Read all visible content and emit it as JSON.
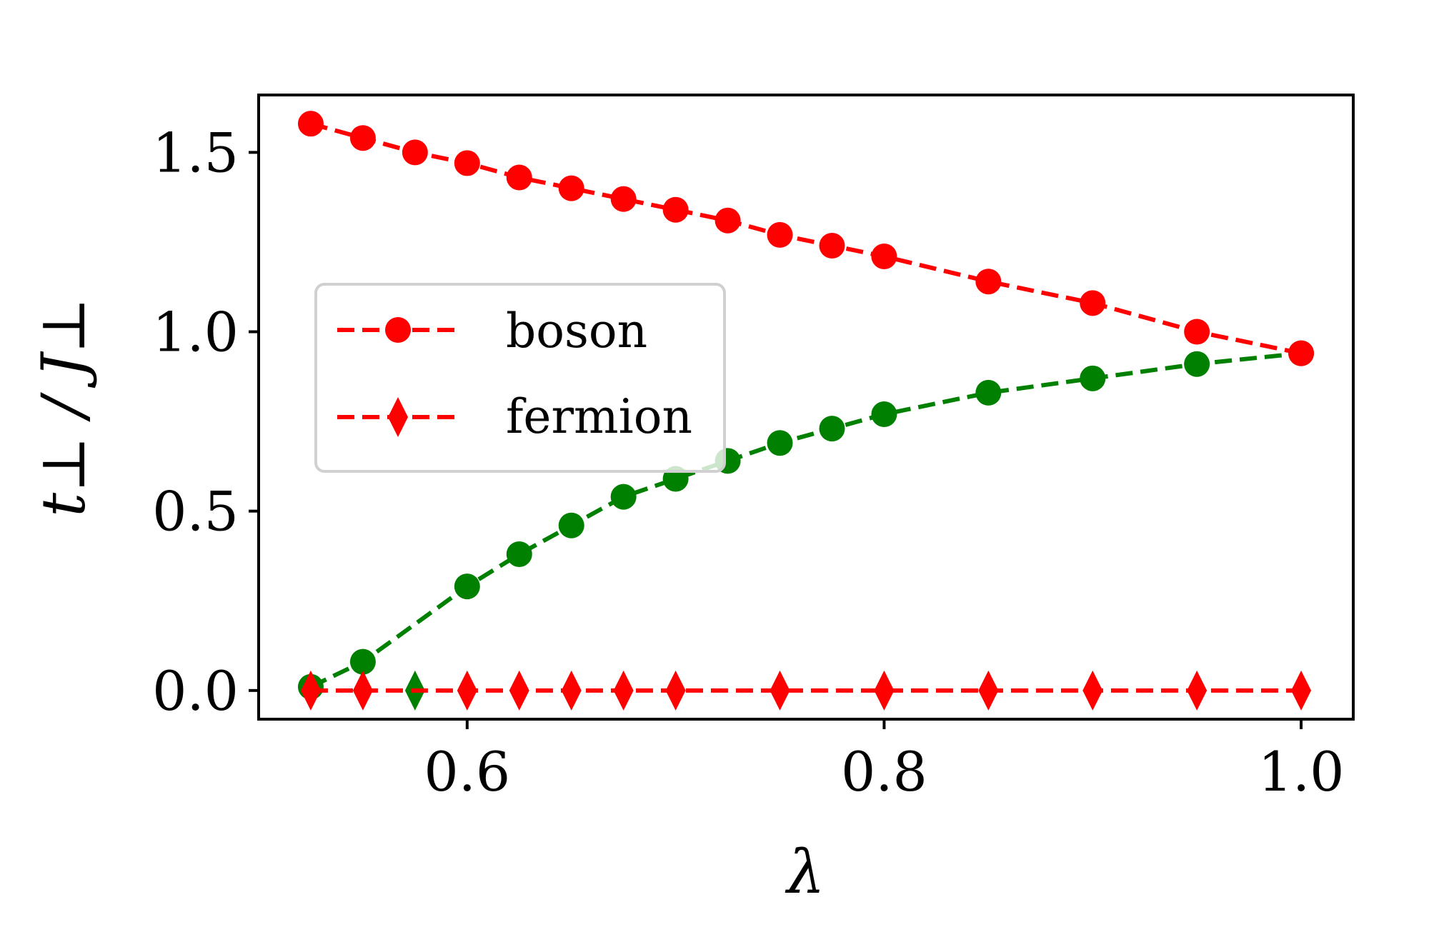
{
  "chart_data": {
    "type": "line",
    "xlabel": "λ",
    "ylabel": "t⊥ / J⊥",
    "xlim": [
      0.5,
      1.025
    ],
    "ylim": [
      -0.08,
      1.66
    ],
    "xticks": [
      0.6,
      0.8,
      1.0
    ],
    "xtick_labels": [
      "0.6",
      "0.8",
      "1.0"
    ],
    "yticks": [
      0.0,
      0.5,
      1.0,
      1.5
    ],
    "ytick_labels": [
      "0.0",
      "0.5",
      "1.0",
      "1.5"
    ],
    "grid": false,
    "legend_position": "center-left",
    "series": [
      {
        "name": "boson",
        "color": "#ff0000",
        "marker": "circle",
        "linestyle": "dashed",
        "x": [
          0.525,
          0.55,
          0.575,
          0.6,
          0.625,
          0.65,
          0.675,
          0.7,
          0.725,
          0.75,
          0.775,
          0.8,
          0.85,
          0.9,
          0.95,
          1.0
        ],
        "y": [
          1.58,
          1.54,
          1.5,
          1.47,
          1.43,
          1.4,
          1.37,
          1.34,
          1.31,
          1.27,
          1.24,
          1.21,
          1.14,
          1.08,
          1.0,
          0.94
        ]
      },
      {
        "name": "",
        "color": "#008000",
        "marker": "circle",
        "linestyle": "dashed",
        "x": [
          0.525,
          0.55,
          0.6,
          0.625,
          0.65,
          0.675,
          0.7,
          0.725,
          0.75,
          0.775,
          0.8,
          0.85,
          0.9,
          0.95,
          1.0
        ],
        "y": [
          0.01,
          0.08,
          0.29,
          0.38,
          0.46,
          0.54,
          0.59,
          0.64,
          0.69,
          0.73,
          0.77,
          0.83,
          0.87,
          0.91,
          0.94
        ]
      },
      {
        "name": "",
        "color": "#008000",
        "marker": "diamond",
        "linestyle": "none",
        "x": [
          0.575
        ],
        "y": [
          0.0
        ]
      },
      {
        "name": "fermion",
        "color": "#ff0000",
        "marker": "diamond",
        "linestyle": "dashed",
        "x": [
          0.525,
          0.55,
          0.6,
          0.625,
          0.65,
          0.675,
          0.7,
          0.75,
          0.8,
          0.85,
          0.9,
          0.95,
          1.0
        ],
        "y": [
          0.0,
          0.0,
          0.0,
          0.0,
          0.0,
          0.0,
          0.0,
          0.0,
          0.0,
          0.0,
          0.0,
          0.0,
          0.0
        ]
      }
    ]
  }
}
